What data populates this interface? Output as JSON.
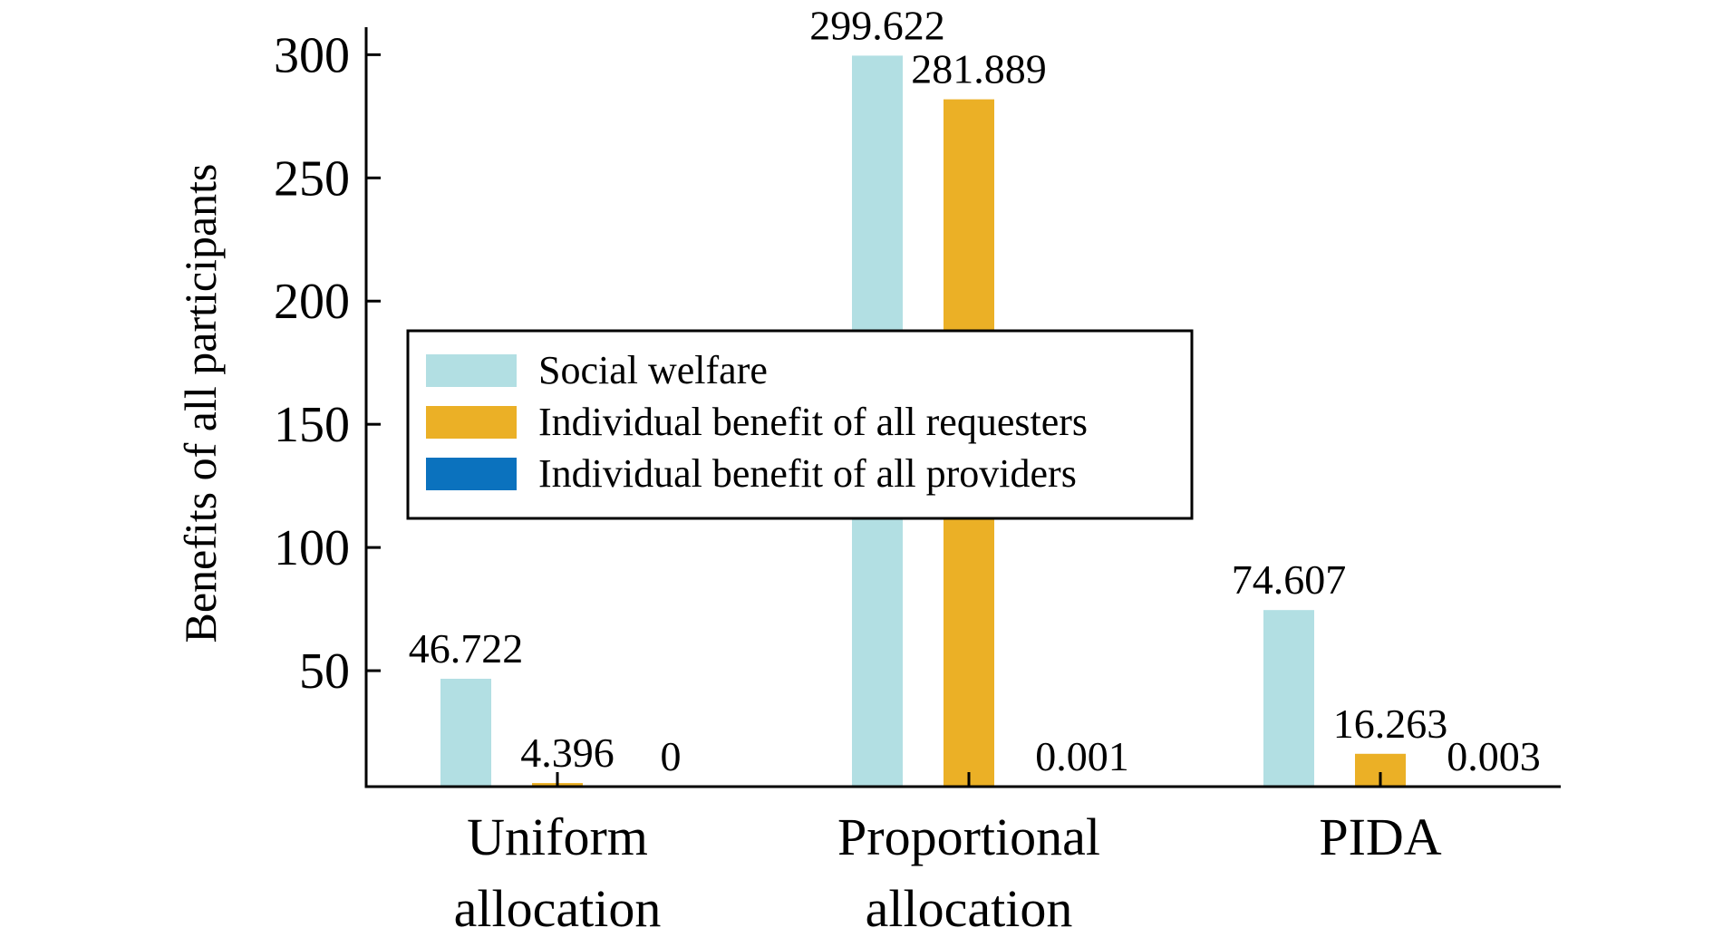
{
  "chart_data": {
    "type": "bar",
    "title": "",
    "xlabel": "",
    "ylabel": "Benefits of all participants",
    "ylim": [
      0,
      310
    ],
    "yticks": [
      50,
      100,
      150,
      200,
      250,
      300
    ],
    "grid": false,
    "legend_position": "center",
    "categories": [
      [
        "Uniform",
        "allocation"
      ],
      [
        "Proportional",
        "allocation"
      ],
      [
        "PIDA"
      ]
    ],
    "series": [
      {
        "name": "Social welfare",
        "color": "#b2dfe3",
        "values": [
          46.722,
          299.622,
          74.607
        ],
        "labels": [
          "46.722",
          "299.622",
          "74.607"
        ]
      },
      {
        "name": "Individual benefit of all requesters",
        "color": "#ebb026",
        "values": [
          4.396,
          281.889,
          16.263
        ],
        "labels": [
          "4.396",
          "281.889",
          "16.263"
        ]
      },
      {
        "name": "Individual benefit of all providers",
        "color": "#0b72be",
        "values": [
          0,
          0.001,
          0.003
        ],
        "labels": [
          "0",
          "0.001",
          "0.003"
        ]
      }
    ]
  }
}
